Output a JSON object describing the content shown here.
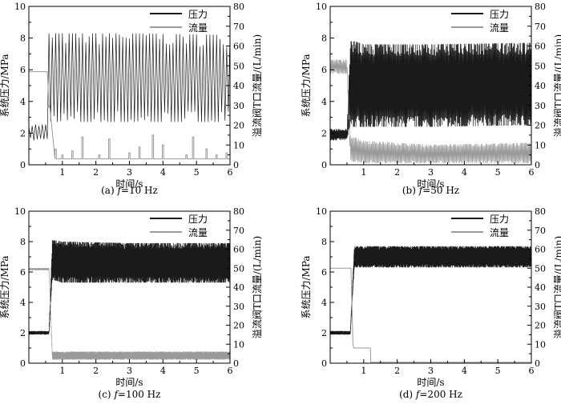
{
  "figure": {
    "background": "#ffffff",
    "colors": {
      "pressure": "#1a1a1a",
      "flow": "#9a9a9a"
    }
  },
  "chart_data": [
    {
      "type": "line",
      "caption_prefix": "(a)",
      "caption_f": "f",
      "caption_value": "=10 Hz",
      "xlabel": "时间/s",
      "ylabel_left": "系统压力/MPa",
      "ylabel_right": "溢流阀T口流量/(L/min)",
      "xlim": [
        0,
        6
      ],
      "ylim_left": [
        0,
        10
      ],
      "ylim_right": [
        0,
        80
      ],
      "x_ticks": [
        1,
        2,
        3,
        4,
        5,
        6
      ],
      "y_left_ticks": [
        0,
        2,
        4,
        6,
        8,
        10
      ],
      "y_right_ticks": [
        0,
        10,
        20,
        30,
        40,
        50,
        60,
        70,
        80
      ],
      "legend_position": "top-right",
      "series": [
        {
          "name": "压力",
          "axis": "left",
          "x": [
            0,
            0.55,
            0.6,
            0.7,
            1.0,
            3.0,
            6.0
          ],
          "y": [
            1.9,
            1.9,
            4.8,
            5.0,
            5.8,
            5.7,
            5.6
          ],
          "osc_high": [
            2.5,
            2.5,
            8.2,
            8.2,
            8.2,
            8.2,
            8.1
          ],
          "osc_low": [
            1.6,
            1.6,
            2.9,
            2.8,
            2.8,
            2.8,
            2.8
          ],
          "osc_period": 0.1
        },
        {
          "name": "流量",
          "axis": "right",
          "x": [
            0,
            0.55,
            0.6,
            0.7,
            1.0,
            3.0,
            6.0
          ],
          "y": [
            47,
            47,
            30,
            3,
            3,
            3,
            3
          ],
          "spikes": [
            [
              0.6,
              29
            ],
            [
              0.8,
              8
            ],
            [
              1.0,
              5
            ],
            [
              1.3,
              7
            ],
            [
              1.6,
              14
            ],
            [
              2.1,
              5
            ],
            [
              2.4,
              13
            ],
            [
              3.0,
              6
            ],
            [
              3.3,
              9
            ],
            [
              3.7,
              15
            ],
            [
              4.0,
              10
            ],
            [
              4.7,
              5
            ],
            [
              4.9,
              14
            ],
            [
              5.3,
              8
            ],
            [
              5.6,
              5
            ],
            [
              5.9,
              6
            ]
          ]
        }
      ]
    },
    {
      "type": "line",
      "caption_prefix": "(b)",
      "caption_f": "f",
      "caption_value": "=50 Hz",
      "xlabel": "时间/s",
      "ylabel_left": "系统压力/MPa",
      "ylabel_right": "溢流阀T口流量/(L/min)",
      "xlim": [
        0,
        6
      ],
      "ylim_left": [
        0,
        10
      ],
      "ylim_right": [
        0,
        80
      ],
      "x_ticks": [
        1,
        2,
        3,
        4,
        5,
        6
      ],
      "y_left_ticks": [
        0,
        2,
        4,
        6,
        8,
        10
      ],
      "y_right_ticks": [
        0,
        10,
        20,
        30,
        40,
        50,
        60,
        70,
        80
      ],
      "legend_position": "top-right",
      "series": [
        {
          "name": "压力",
          "axis": "left",
          "x": [
            0,
            0.5,
            0.6,
            1.0,
            3.0,
            6.0
          ],
          "y": [
            1.9,
            1.9,
            4.0,
            5.0,
            5.0,
            5.1
          ],
          "osc_high": [
            2.2,
            2.2,
            7.8,
            7.5,
            7.5,
            7.6
          ],
          "osc_low": [
            1.6,
            1.6,
            2.5,
            2.5,
            2.5,
            2.6
          ],
          "osc_period": 0.02
        },
        {
          "name": "流量",
          "axis": "right",
          "x": [
            0,
            0.5,
            0.6,
            1.0,
            3.0,
            6.0
          ],
          "y": [
            50,
            50,
            10,
            5,
            5,
            5
          ],
          "osc_high": [
            53,
            53,
            15,
            12,
            10,
            11
          ],
          "osc_low": [
            46,
            46,
            2,
            1,
            1,
            1
          ],
          "osc_period": 0.03
        }
      ]
    },
    {
      "type": "line",
      "caption_prefix": "(c)",
      "caption_f": "f",
      "caption_value": "=100 Hz",
      "xlabel": "时间/s",
      "ylabel_left": "系统压力/MPa",
      "ylabel_right": "溢流阀T口流量/(L/min)",
      "xlim": [
        0,
        6
      ],
      "ylim_left": [
        0,
        10
      ],
      "ylim_right": [
        0,
        80
      ],
      "x_ticks": [
        1,
        2,
        3,
        4,
        5,
        6
      ],
      "y_left_ticks": [
        0,
        2,
        4,
        6,
        8,
        10
      ],
      "y_right_ticks": [
        0,
        10,
        20,
        30,
        40,
        50,
        60,
        70,
        80
      ],
      "legend_position": "top-right",
      "series": [
        {
          "name": "压力",
          "axis": "left",
          "x": [
            0,
            0.6,
            0.7,
            1.0,
            3.0,
            6.0
          ],
          "y": [
            2.0,
            2.0,
            6.5,
            6.6,
            6.6,
            6.6
          ],
          "osc_high": [
            2.1,
            2.1,
            8.0,
            7.9,
            7.8,
            7.8
          ],
          "osc_low": [
            1.9,
            1.9,
            5.6,
            5.4,
            5.4,
            5.4
          ],
          "osc_period": 0.01
        },
        {
          "name": "流量",
          "axis": "right",
          "x": [
            0,
            0.6,
            0.7,
            1.0,
            3.0,
            6.0
          ],
          "y": [
            50,
            50,
            4,
            4,
            4,
            4
          ],
          "osc_high": [
            50,
            50,
            6,
            6,
            6,
            6
          ],
          "osc_low": [
            49,
            49,
            2,
            2,
            2,
            2
          ],
          "osc_period": 0.01
        }
      ]
    },
    {
      "type": "line",
      "caption_prefix": "(d)",
      "caption_f": "f",
      "caption_value": "=200 Hz",
      "xlabel": "时间/s",
      "ylabel_left": "系统压力/MPa",
      "ylabel_right": "溢流阀T口流量/(L/min)",
      "xlim": [
        0,
        6
      ],
      "ylim_left": [
        0,
        10
      ],
      "ylim_right": [
        0,
        80
      ],
      "x_ticks": [
        1,
        2,
        3,
        4,
        5,
        6
      ],
      "y_left_ticks": [
        0,
        2,
        4,
        6,
        8,
        10
      ],
      "y_right_ticks": [
        0,
        10,
        20,
        30,
        40,
        50,
        60,
        70,
        80
      ],
      "legend_position": "top-right",
      "series": [
        {
          "name": "压力",
          "axis": "left",
          "x": [
            0,
            0.6,
            0.72,
            1.0,
            3.0,
            6.0
          ],
          "y": [
            2.0,
            2.0,
            7.0,
            7.0,
            7.0,
            7.0
          ],
          "osc_high": [
            2.1,
            2.1,
            7.6,
            7.6,
            7.6,
            7.6
          ],
          "osc_low": [
            1.9,
            1.9,
            6.4,
            6.4,
            6.4,
            6.4
          ],
          "osc_period": 0.005
        },
        {
          "name": "流量",
          "axis": "right",
          "x": [
            0,
            0.62,
            0.68,
            0.7,
            1.2,
            1.21,
            6.0
          ],
          "y": [
            50,
            50,
            10,
            8,
            8,
            0.5,
            0.5
          ]
        }
      ]
    }
  ]
}
